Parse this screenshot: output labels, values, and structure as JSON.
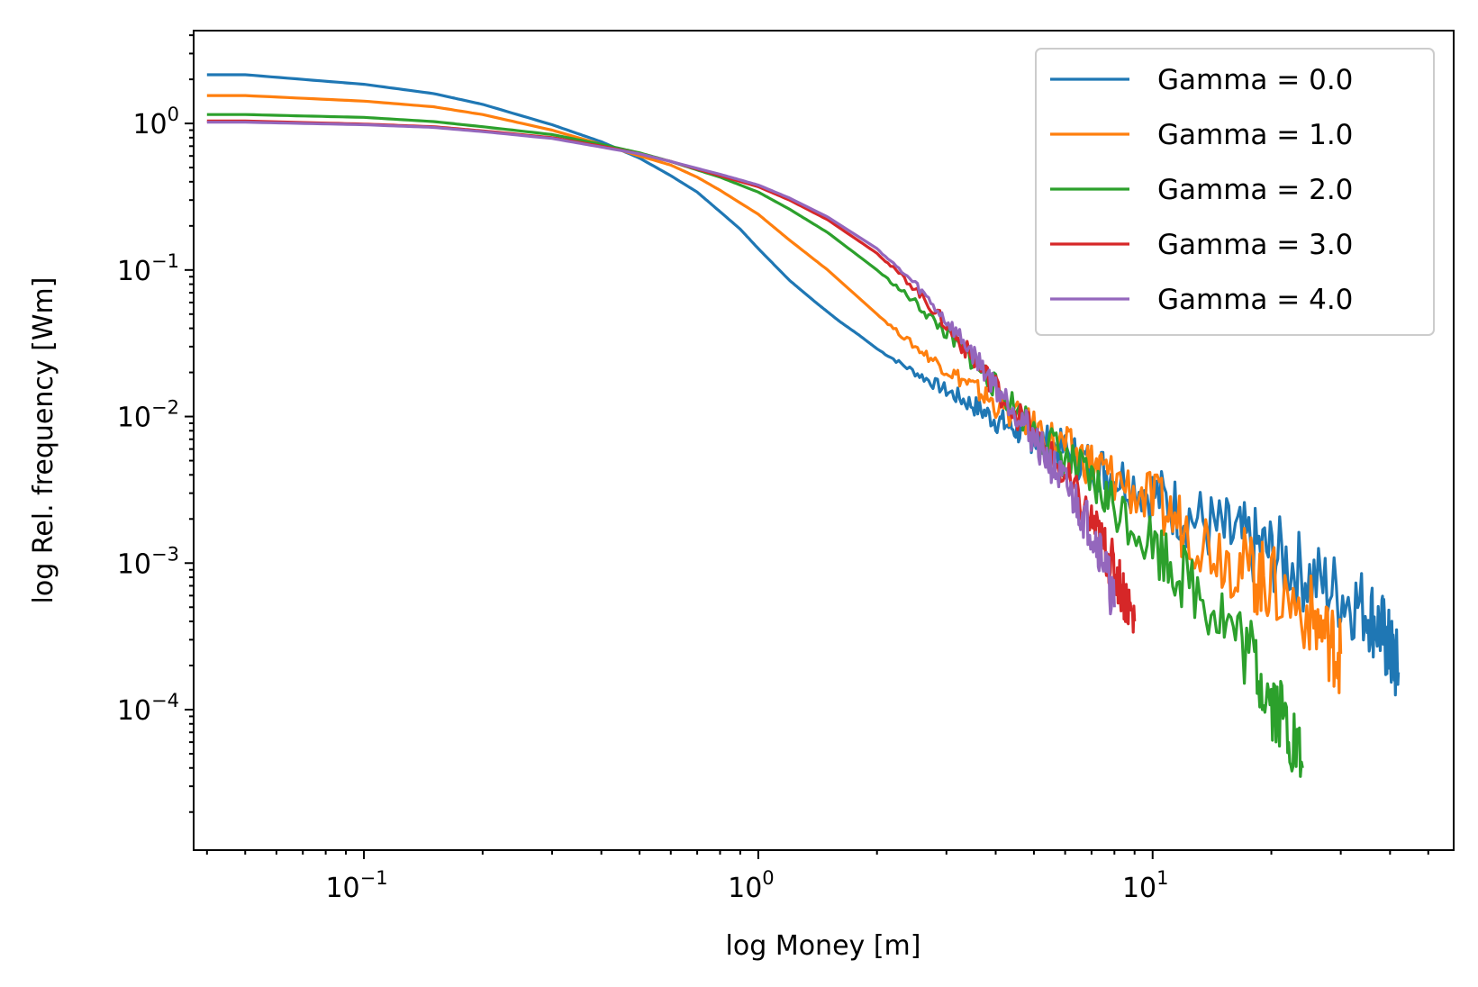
{
  "chart_data": {
    "type": "line",
    "title": "",
    "xlabel": "log Money [m]",
    "ylabel": "log Rel. frequency [Wm]",
    "xscale": "log",
    "yscale": "log",
    "xlim": [
      0.037,
      58
    ],
    "ylim": [
      1.1e-05,
      4.3
    ],
    "grid": false,
    "legend_position": "top-right",
    "x_ticks": [
      {
        "value": 0.1,
        "base": "10",
        "exp": "−1"
      },
      {
        "value": 1,
        "base": "10",
        "exp": "0"
      },
      {
        "value": 10,
        "base": "10",
        "exp": "1"
      }
    ],
    "y_ticks": [
      {
        "value": 1,
        "base": "10",
        "exp": "0"
      },
      {
        "value": 0.1,
        "base": "10",
        "exp": "−1"
      },
      {
        "value": 0.01,
        "base": "10",
        "exp": "−2"
      },
      {
        "value": 0.001,
        "base": "10",
        "exp": "−3"
      },
      {
        "value": 0.0001,
        "base": "10",
        "exp": "−4"
      }
    ],
    "series": [
      {
        "name": "Gamma = 0.0",
        "color": "#1f77b4",
        "points": [
          [
            0.04,
            2.15
          ],
          [
            0.05,
            2.15
          ],
          [
            0.1,
            1.85
          ],
          [
            0.15,
            1.6
          ],
          [
            0.2,
            1.35
          ],
          [
            0.3,
            0.98
          ],
          [
            0.4,
            0.75
          ],
          [
            0.5,
            0.58
          ],
          [
            0.6,
            0.44
          ],
          [
            0.7,
            0.34
          ],
          [
            0.8,
            0.25
          ],
          [
            0.9,
            0.19
          ],
          [
            1.0,
            0.14
          ],
          [
            1.2,
            0.085
          ],
          [
            1.4,
            0.06
          ],
          [
            1.6,
            0.045
          ],
          [
            1.8,
            0.036
          ],
          [
            2.0,
            0.029
          ],
          [
            2.5,
            0.02
          ],
          [
            3.0,
            0.015
          ],
          [
            3.5,
            0.012
          ],
          [
            4.0,
            0.0095
          ],
          [
            4.5,
            0.0082
          ],
          [
            5.0,
            0.0072
          ],
          [
            6.0,
            0.0058
          ],
          [
            7.0,
            0.0047
          ],
          [
            8.0,
            0.004
          ],
          [
            10,
            0.003
          ],
          [
            12,
            0.0022
          ],
          [
            15,
            0.0016
          ],
          [
            18,
            0.0013
          ],
          [
            21,
            0.0011
          ],
          [
            25,
            0.0008
          ],
          [
            30,
            0.00062
          ],
          [
            35,
            0.00048
          ],
          [
            38,
            0.00035
          ],
          [
            40,
            0.00025
          ],
          [
            42,
            0.00018
          ]
        ]
      },
      {
        "name": "Gamma = 1.0",
        "color": "#ff7f0e",
        "points": [
          [
            0.04,
            1.55
          ],
          [
            0.05,
            1.55
          ],
          [
            0.1,
            1.42
          ],
          [
            0.15,
            1.3
          ],
          [
            0.2,
            1.15
          ],
          [
            0.3,
            0.9
          ],
          [
            0.4,
            0.72
          ],
          [
            0.5,
            0.6
          ],
          [
            0.6,
            0.52
          ],
          [
            0.7,
            0.43
          ],
          [
            0.8,
            0.35
          ],
          [
            1.0,
            0.24
          ],
          [
            1.2,
            0.16
          ],
          [
            1.5,
            0.1
          ],
          [
            2.0,
            0.05
          ],
          [
            2.5,
            0.03
          ],
          [
            3.0,
            0.021
          ],
          [
            3.5,
            0.016
          ],
          [
            4.0,
            0.012
          ],
          [
            5.0,
            0.0085
          ],
          [
            6.0,
            0.0062
          ],
          [
            7.0,
            0.0048
          ],
          [
            8.0,
            0.0038
          ],
          [
            10,
            0.0026
          ],
          [
            12,
            0.0018
          ],
          [
            15,
            0.0012
          ],
          [
            18,
            0.00085
          ],
          [
            20,
            0.0007
          ],
          [
            25,
            0.00045
          ],
          [
            28,
            0.0003
          ],
          [
            30,
            0.00024
          ]
        ]
      },
      {
        "name": "Gamma = 2.0",
        "color": "#2ca02c",
        "points": [
          [
            0.04,
            1.15
          ],
          [
            0.05,
            1.15
          ],
          [
            0.1,
            1.1
          ],
          [
            0.15,
            1.03
          ],
          [
            0.2,
            0.95
          ],
          [
            0.3,
            0.84
          ],
          [
            0.4,
            0.72
          ],
          [
            0.5,
            0.63
          ],
          [
            0.6,
            0.55
          ],
          [
            0.8,
            0.43
          ],
          [
            1.0,
            0.34
          ],
          [
            1.2,
            0.26
          ],
          [
            1.5,
            0.18
          ],
          [
            2.0,
            0.1
          ],
          [
            2.5,
            0.06
          ],
          [
            3.0,
            0.037
          ],
          [
            3.5,
            0.024
          ],
          [
            4.0,
            0.016
          ],
          [
            5.0,
            0.0085
          ],
          [
            6.0,
            0.0052
          ],
          [
            7.0,
            0.0035
          ],
          [
            8.0,
            0.0025
          ],
          [
            10,
            0.0014
          ],
          [
            12,
            0.0008
          ],
          [
            15,
            0.00045
          ],
          [
            18,
            0.00022
          ],
          [
            20,
            0.00012
          ],
          [
            22,
            8e-05
          ],
          [
            24,
            4e-05
          ]
        ]
      },
      {
        "name": "Gamma = 3.0",
        "color": "#d62728",
        "points": [
          [
            0.04,
            1.04
          ],
          [
            0.05,
            1.04
          ],
          [
            0.1,
            0.99
          ],
          [
            0.15,
            0.95
          ],
          [
            0.2,
            0.89
          ],
          [
            0.3,
            0.8
          ],
          [
            0.4,
            0.7
          ],
          [
            0.5,
            0.62
          ],
          [
            0.6,
            0.55
          ],
          [
            0.8,
            0.44
          ],
          [
            1.0,
            0.37
          ],
          [
            1.2,
            0.3
          ],
          [
            1.5,
            0.22
          ],
          [
            2.0,
            0.13
          ],
          [
            2.5,
            0.075
          ],
          [
            3.0,
            0.042
          ],
          [
            3.5,
            0.025
          ],
          [
            4.0,
            0.016
          ],
          [
            5.0,
            0.0075
          ],
          [
            6.0,
            0.0038
          ],
          [
            7.0,
            0.0019
          ],
          [
            7.5,
            0.0013
          ],
          [
            8.0,
            0.0009
          ],
          [
            8.5,
            0.0006
          ],
          [
            9.0,
            0.0004
          ]
        ]
      },
      {
        "name": "Gamma = 4.0",
        "color": "#9467bd",
        "points": [
          [
            0.04,
            1.02
          ],
          [
            0.05,
            1.02
          ],
          [
            0.1,
            0.98
          ],
          [
            0.15,
            0.94
          ],
          [
            0.2,
            0.88
          ],
          [
            0.3,
            0.79
          ],
          [
            0.4,
            0.69
          ],
          [
            0.5,
            0.62
          ],
          [
            0.6,
            0.55
          ],
          [
            0.8,
            0.45
          ],
          [
            1.0,
            0.38
          ],
          [
            1.2,
            0.31
          ],
          [
            1.5,
            0.23
          ],
          [
            2.0,
            0.14
          ],
          [
            2.5,
            0.08
          ],
          [
            3.0,
            0.045
          ],
          [
            3.5,
            0.027
          ],
          [
            4.0,
            0.016
          ],
          [
            4.5,
            0.011
          ],
          [
            5.0,
            0.0072
          ],
          [
            5.5,
            0.0048
          ],
          [
            6.0,
            0.0034
          ],
          [
            6.5,
            0.0024
          ],
          [
            7.0,
            0.0017
          ],
          [
            7.5,
            0.0011
          ],
          [
            8.0,
            0.0005
          ]
        ]
      }
    ]
  }
}
